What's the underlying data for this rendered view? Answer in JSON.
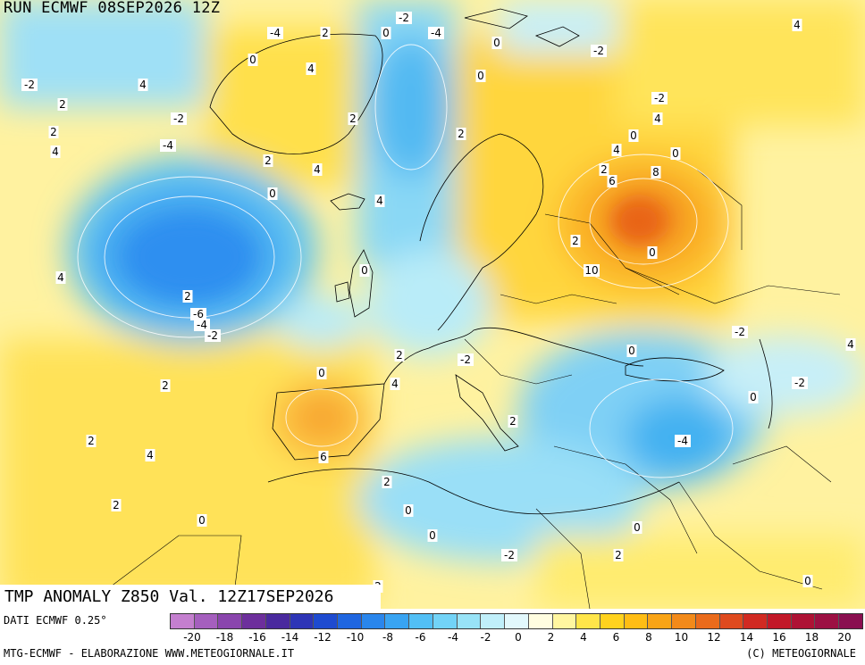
{
  "run_title": "RUN ECMWF 08SEP2026 12Z",
  "anomaly_title": "TMP ANOMALY Z850 Val. 12Z17SEP2026",
  "data_source": "DATI ECMWF 0.25°",
  "footer_left": "MTG-ECMWF - ELABORAZIONE WWW.METEOGIORNALE.IT",
  "footer_right": "(C) METEOGIORNALE",
  "legend": {
    "colors": [
      "#c47fcf",
      "#a55fbe",
      "#8a45ad",
      "#6d2f9c",
      "#4a2a9e",
      "#2e35b6",
      "#1e4bd0",
      "#1f66e0",
      "#2a86ec",
      "#39a4f2",
      "#52bff5",
      "#72d3f7",
      "#98e3f7",
      "#c0effa",
      "#e2f8fc",
      "#fffde0",
      "#fff6a0",
      "#ffe54a",
      "#ffd21e",
      "#ffbd14",
      "#f9a416",
      "#f28a1a",
      "#ea6b1c",
      "#df4a1e",
      "#d12a22",
      "#c21828",
      "#ae1235",
      "#9c1043",
      "#8a0f50"
    ],
    "ticks": [
      "-20",
      "-18",
      "-16",
      "-14",
      "-12",
      "-10",
      "-8",
      "-6",
      "-4",
      "-2",
      "0",
      "2",
      "4",
      "6",
      "8",
      "10",
      "12",
      "14",
      "16",
      "18",
      "20"
    ]
  },
  "map_labels": [
    "-4",
    "2",
    "-2",
    "0",
    "-4",
    "0",
    "-2",
    "4",
    "2",
    "4",
    "0",
    "-2",
    "-2",
    "0",
    "4",
    "-2",
    "2",
    "4",
    "2",
    "-4",
    "0",
    "4",
    "2",
    "2",
    "4",
    "4",
    "0",
    "0",
    "2",
    "6",
    "8",
    "4",
    "0",
    "10",
    "2",
    "4",
    "2",
    "-6",
    "-4",
    "-2",
    "0",
    "0",
    "4",
    "2",
    "-2",
    "0",
    "-2",
    "4",
    "-2",
    "2",
    "2",
    "2",
    "-4",
    "0",
    "6",
    "4",
    "2",
    "2",
    "0",
    "0",
    "0",
    "-2",
    "2",
    "0",
    "0",
    "2"
  ]
}
